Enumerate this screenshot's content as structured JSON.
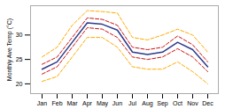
{
  "chart_data": {
    "type": "line",
    "categories": [
      "Jan",
      "Feb",
      "Mar",
      "Apr",
      "May",
      "Jun",
      "Jul",
      "Aug",
      "Sep",
      "Oct",
      "Nov",
      "Dec"
    ],
    "series": [
      {
        "color": "#ffaa00",
        "line_style": "dashed",
        "values": [
          20.5,
          21.5,
          25.5,
          29.5,
          29.5,
          27.5,
          23.5,
          23.0,
          23.0,
          24.5,
          22.5,
          20.0
        ]
      },
      {
        "color": "#ffaa00",
        "line_style": "dashed",
        "values": [
          25.5,
          27.5,
          32.0,
          35.0,
          34.8,
          34.5,
          29.5,
          29.0,
          30.0,
          31.2,
          30.0,
          26.5
        ]
      },
      {
        "color": "#cc1111",
        "line_style": "dashed",
        "values": [
          22.0,
          23.5,
          27.5,
          31.5,
          31.2,
          29.5,
          25.5,
          25.0,
          25.5,
          27.2,
          25.5,
          22.5
        ]
      },
      {
        "color": "#cc1111",
        "line_style": "dashed",
        "values": [
          24.0,
          25.5,
          29.5,
          33.5,
          33.2,
          32.0,
          27.5,
          27.0,
          27.5,
          29.8,
          28.0,
          24.5
        ]
      },
      {
        "color": "#2b3a8a",
        "line_style": "solid",
        "values": [
          23.0,
          24.5,
          28.5,
          32.5,
          32.2,
          31.0,
          26.5,
          26.0,
          26.5,
          28.5,
          27.0,
          23.5
        ]
      }
    ],
    "ylabel": "Monthly Ave Temp (°C)",
    "ylim": [
      18,
      36
    ],
    "yticks": [
      20,
      25,
      30
    ],
    "grid": false
  }
}
